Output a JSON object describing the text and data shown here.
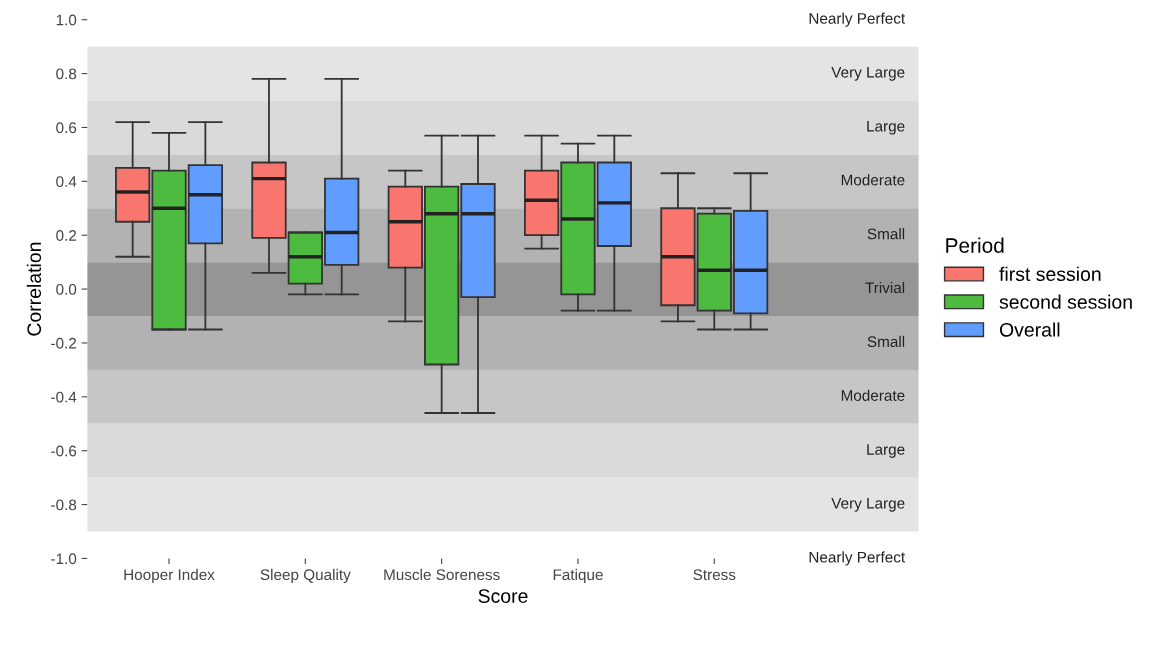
{
  "chart_data": {
    "type": "box",
    "xlabel": "Score",
    "ylabel": "Correlation",
    "legend_title": "Period",
    "legend": "right",
    "grid": false,
    "categories": [
      "Hooper Index",
      "Sleep Quality",
      "Muscle Soreness",
      "Fatique",
      "Stress"
    ],
    "ylim": [
      -1.0,
      1.0
    ],
    "yticks": [
      {
        "value": 1.0,
        "label": "1.0"
      },
      {
        "value": 0.8,
        "label": "0.8"
      },
      {
        "value": 0.6,
        "label": "0.6"
      },
      {
        "value": 0.4,
        "label": "0.4"
      },
      {
        "value": 0.2,
        "label": "0.2"
      },
      {
        "value": 0.0,
        "label": "0.0"
      },
      {
        "value": -0.2,
        "label": "-0.2"
      },
      {
        "value": -0.4,
        "label": "-0.4"
      },
      {
        "value": -0.6,
        "label": "-0.6"
      },
      {
        "value": -0.8,
        "label": "-0.8"
      },
      {
        "value": -1.0,
        "label": "-1.0"
      }
    ],
    "bands": [
      {
        "axis": "y",
        "from": 0.7,
        "to": 0.9,
        "label": "Very Large",
        "color": "#e4e4e4"
      },
      {
        "axis": "y",
        "from": 0.5,
        "to": 0.7,
        "label": "Large",
        "color": "#dadada"
      },
      {
        "axis": "y",
        "from": 0.3,
        "to": 0.5,
        "label": "Moderate",
        "color": "#c6c6c6"
      },
      {
        "axis": "y",
        "from": 0.1,
        "to": 0.3,
        "label": "Small",
        "color": "#b2b2b2"
      },
      {
        "axis": "y",
        "from": -0.1,
        "to": 0.1,
        "label": "Trivial",
        "color": "#959595"
      },
      {
        "axis": "y",
        "from": -0.3,
        "to": -0.1,
        "label": "Small",
        "color": "#b2b2b2"
      },
      {
        "axis": "y",
        "from": -0.5,
        "to": -0.3,
        "label": "Moderate",
        "color": "#c6c6c6"
      },
      {
        "axis": "y",
        "from": -0.7,
        "to": -0.5,
        "label": "Large",
        "color": "#dadada"
      },
      {
        "axis": "y",
        "from": -0.9,
        "to": -0.7,
        "label": "Very Large",
        "color": "#e4e4e4"
      }
    ],
    "annotations": [
      "Nearly Perfect",
      "Nearly Perfect"
    ],
    "series": [
      {
        "name": "first session",
        "color": "#f8766d",
        "boxes": [
          {
            "low": 0.12,
            "q1": 0.25,
            "median": 0.36,
            "q3": 0.45,
            "high": 0.62
          },
          {
            "low": 0.06,
            "q1": 0.19,
            "median": 0.41,
            "q3": 0.47,
            "high": 0.78
          },
          {
            "low": -0.12,
            "q1": 0.08,
            "median": 0.25,
            "q3": 0.38,
            "high": 0.44
          },
          {
            "low": 0.15,
            "q1": 0.2,
            "median": 0.33,
            "q3": 0.44,
            "high": 0.57
          },
          {
            "low": -0.12,
            "q1": -0.06,
            "median": 0.12,
            "q3": 0.3,
            "high": 0.43
          }
        ]
      },
      {
        "name": "second session",
        "color": "#4cbb3f",
        "boxes": [
          {
            "low": -0.15,
            "q1": -0.15,
            "median": 0.3,
            "q3": 0.44,
            "high": 0.58
          },
          {
            "low": -0.02,
            "q1": 0.02,
            "median": 0.12,
            "q3": 0.21,
            "high": 0.21
          },
          {
            "low": -0.46,
            "q1": -0.28,
            "median": 0.28,
            "q3": 0.38,
            "high": 0.57
          },
          {
            "low": -0.08,
            "q1": -0.02,
            "median": 0.26,
            "q3": 0.47,
            "high": 0.54
          },
          {
            "low": -0.15,
            "q1": -0.08,
            "median": 0.07,
            "q3": 0.28,
            "high": 0.3
          }
        ]
      },
      {
        "name": "Overall",
        "color": "#619cff",
        "boxes": [
          {
            "low": -0.15,
            "q1": 0.17,
            "median": 0.35,
            "q3": 0.46,
            "high": 0.62
          },
          {
            "low": -0.02,
            "q1": 0.09,
            "median": 0.21,
            "q3": 0.41,
            "high": 0.78
          },
          {
            "low": -0.46,
            "q1": -0.03,
            "median": 0.28,
            "q3": 0.39,
            "high": 0.57
          },
          {
            "low": -0.08,
            "q1": 0.16,
            "median": 0.32,
            "q3": 0.47,
            "high": 0.57
          },
          {
            "low": -0.15,
            "q1": -0.09,
            "median": 0.07,
            "q3": 0.29,
            "high": 0.43
          }
        ]
      }
    ]
  }
}
